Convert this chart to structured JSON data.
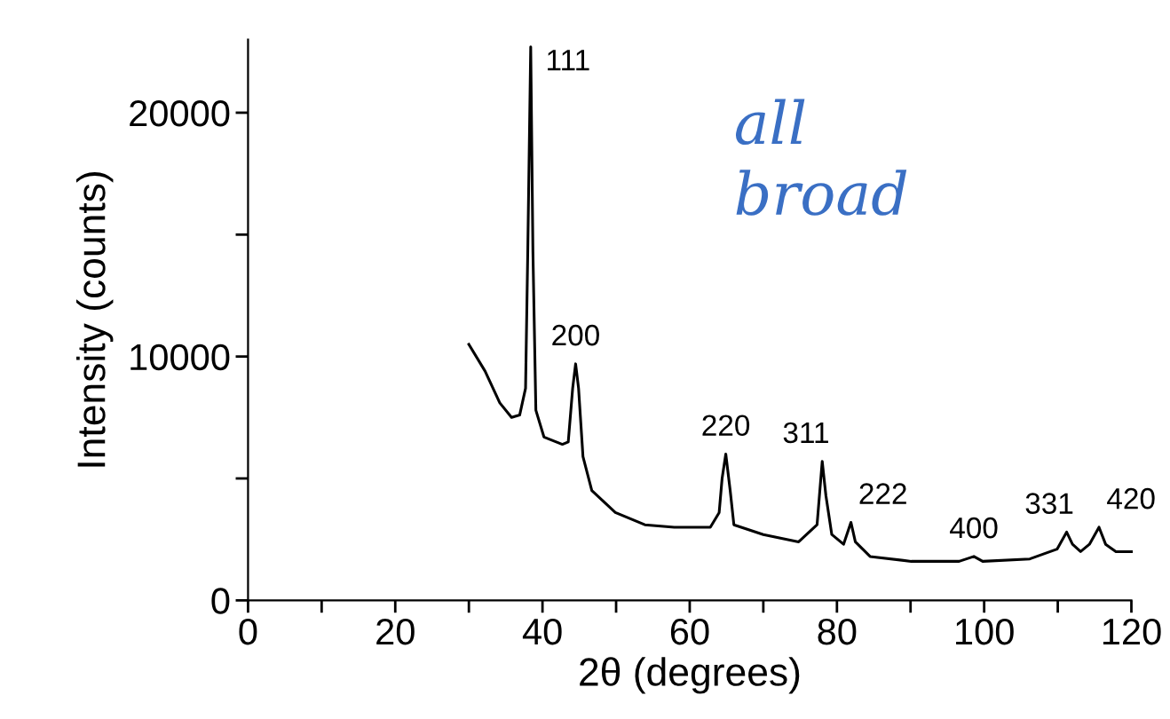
{
  "chart_data": {
    "type": "line",
    "xlabel": "2θ (degrees)",
    "ylabel": "Intensity (counts)",
    "xlim": [
      0,
      120
    ],
    "ylim": [
      0,
      23000
    ],
    "xticks": [
      0,
      {
        "value": 10,
        "label": null
      },
      20,
      {
        "value": 30,
        "label": null
      },
      40,
      {
        "value": 50,
        "label": null
      },
      60,
      {
        "value": 70,
        "label": null
      },
      80,
      {
        "value": 90,
        "label": null
      },
      100,
      {
        "value": 110,
        "label": null
      },
      120
    ],
    "yticks": [
      0,
      {
        "value": 5000,
        "label": null
      },
      10000,
      {
        "value": 15000,
        "label": null
      },
      20000
    ],
    "grid": false,
    "legend": false,
    "marker": "none",
    "line_style": "solid",
    "series": [
      {
        "color": "#000000",
        "x": [
          30.0,
          32.2,
          34.2,
          35.8,
          36.9,
          37.7,
          38.0,
          38.4,
          38.7,
          39.1,
          40.2,
          42.7,
          43.5,
          44.1,
          44.5,
          44.9,
          45.5,
          46.7,
          49.9,
          53.9,
          57.9,
          62.8,
          64.0,
          64.4,
          64.9,
          65.5,
          66.0,
          70.0,
          74.8,
          77.3,
          78.0,
          78.5,
          79.3,
          80.9,
          81.9,
          82.5,
          84.5,
          90.1,
          96.6,
          98.6,
          99.8,
          106.2,
          109.9,
          111.2,
          112.0,
          113.1,
          114.3,
          115.6,
          116.5,
          117.9,
          120.0
        ],
        "values": [
          10500,
          9400,
          8100,
          7500,
          7600,
          8700,
          14300,
          22700,
          14300,
          7800,
          6700,
          6400,
          6500,
          8700,
          9700,
          8700,
          5900,
          4500,
          3600,
          3100,
          3000,
          3000,
          3600,
          5000,
          6000,
          4500,
          3100,
          2700,
          2400,
          3100,
          5700,
          4300,
          2700,
          2300,
          3200,
          2400,
          1800,
          1600,
          1600,
          1800,
          1600,
          1700,
          2100,
          2800,
          2300,
          2000,
          2300,
          3000,
          2300,
          2000,
          2000
        ]
      }
    ],
    "annotations": [
      {
        "text": "111",
        "x": 38.4,
        "y": 22700
      },
      {
        "text": "200",
        "x": 44.5,
        "y": 9700
      },
      {
        "text": "220",
        "x": 64.9,
        "y": 6000
      },
      {
        "text": "311",
        "x": 78.0,
        "y": 5700
      },
      {
        "text": "222",
        "x": 81.9,
        "y": 3200
      },
      {
        "text": "400",
        "x": 98.6,
        "y": 1800
      },
      {
        "text": "331",
        "x": 111.2,
        "y": 2800
      },
      {
        "text": "420",
        "x": 115.6,
        "y": 3000
      },
      "all\nbroad"
    ]
  }
}
